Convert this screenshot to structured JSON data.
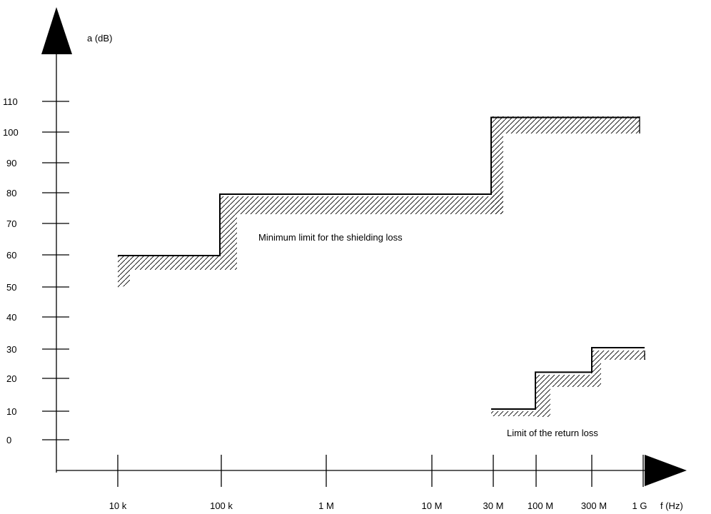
{
  "chart_data": {
    "type": "line",
    "ylabel": "a (dB)",
    "xlabel": "f  (Hz)",
    "ylim": [
      0,
      110
    ],
    "y_ticks": [
      "110",
      "100",
      "90",
      "80",
      "70",
      "60",
      "50",
      "40",
      "30",
      "20",
      "10",
      "0"
    ],
    "x_ticks": [
      "10 k",
      "100 k",
      "1 M",
      "10 M",
      "30 M",
      "100 M",
      "300 M",
      "1 G"
    ],
    "series": [
      {
        "name": "Minimum limit for the shielding loss",
        "points": [
          {
            "x": "10 k",
            "y": 60
          },
          {
            "x": "100 k",
            "y": 60
          },
          {
            "x": "100 k",
            "y": 80
          },
          {
            "x": "30 M",
            "y": 80
          },
          {
            "x": "30 M",
            "y": 105
          },
          {
            "x": "1 G",
            "y": 105
          }
        ]
      },
      {
        "name": "Limit of the return loss",
        "points": [
          {
            "x": "30 M",
            "y": 10
          },
          {
            "x": "100 M",
            "y": 10
          },
          {
            "x": "100 M",
            "y": 22
          },
          {
            "x": "300 M",
            "y": 22
          },
          {
            "x": "300 M",
            "y": 30
          },
          {
            "x": "1 G",
            "y": 30
          }
        ]
      }
    ],
    "annotations": [
      "Minimum limit for the shielding loss",
      "Limit of the return loss"
    ]
  }
}
